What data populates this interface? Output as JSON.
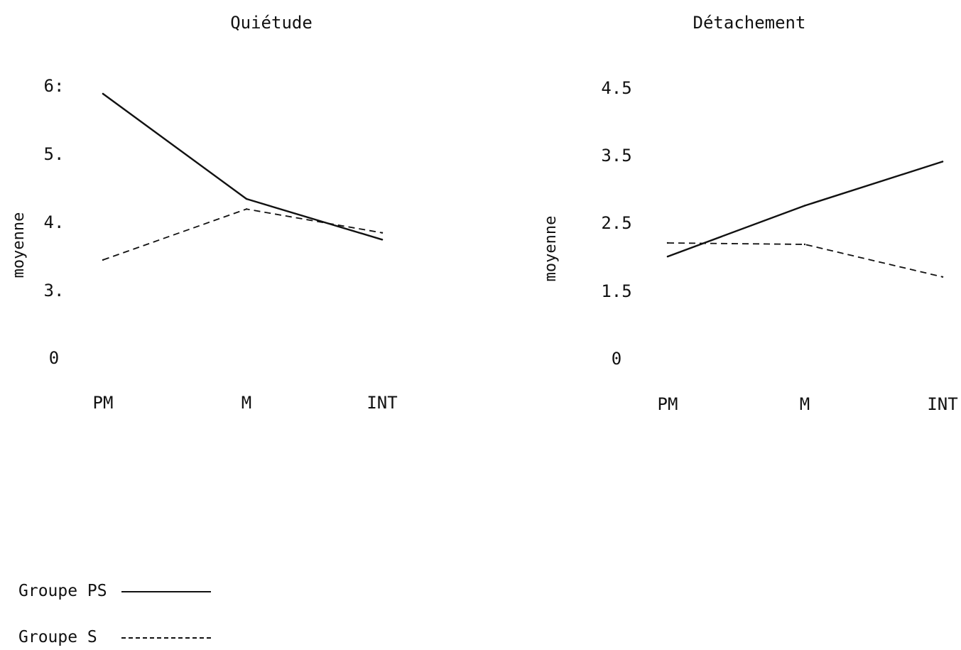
{
  "chart_data": [
    {
      "type": "line",
      "title": "Quiétude",
      "ylabel": "moyenne",
      "xlabel": "",
      "categories": [
        "PM",
        "M",
        "INT"
      ],
      "yticks": [
        "6:",
        "5.",
        "4.",
        "3.",
        "0"
      ],
      "ylim": [
        2,
        6.4
      ],
      "series": [
        {
          "name": "Groupe PS",
          "style": "solid",
          "values": [
            5.75,
            4.2,
            3.6
          ]
        },
        {
          "name": "Groupe S",
          "style": "dashed",
          "values": [
            3.3,
            4.05,
            3.7
          ]
        }
      ]
    },
    {
      "type": "line",
      "title": "Détachement",
      "ylabel": "moyenne",
      "xlabel": "",
      "categories": [
        "PM",
        "M",
        "INT"
      ],
      "yticks": [
        "4.5",
        "3.5",
        "2.5",
        "1.5",
        "0"
      ],
      "ylim": [
        0.5,
        4.9
      ],
      "series": [
        {
          "name": "Groupe PS",
          "style": "solid",
          "values": [
            1.85,
            2.6,
            3.25
          ]
        },
        {
          "name": "Groupe S",
          "style": "dashed",
          "values": [
            2.05,
            2.03,
            1.55
          ]
        }
      ]
    }
  ],
  "legend": {
    "items": [
      {
        "label": "Groupe PS",
        "style": "solid"
      },
      {
        "label": "Groupe S",
        "style": "dashed"
      }
    ]
  },
  "colors": {
    "ink": "#111111",
    "background": "#ffffff"
  }
}
